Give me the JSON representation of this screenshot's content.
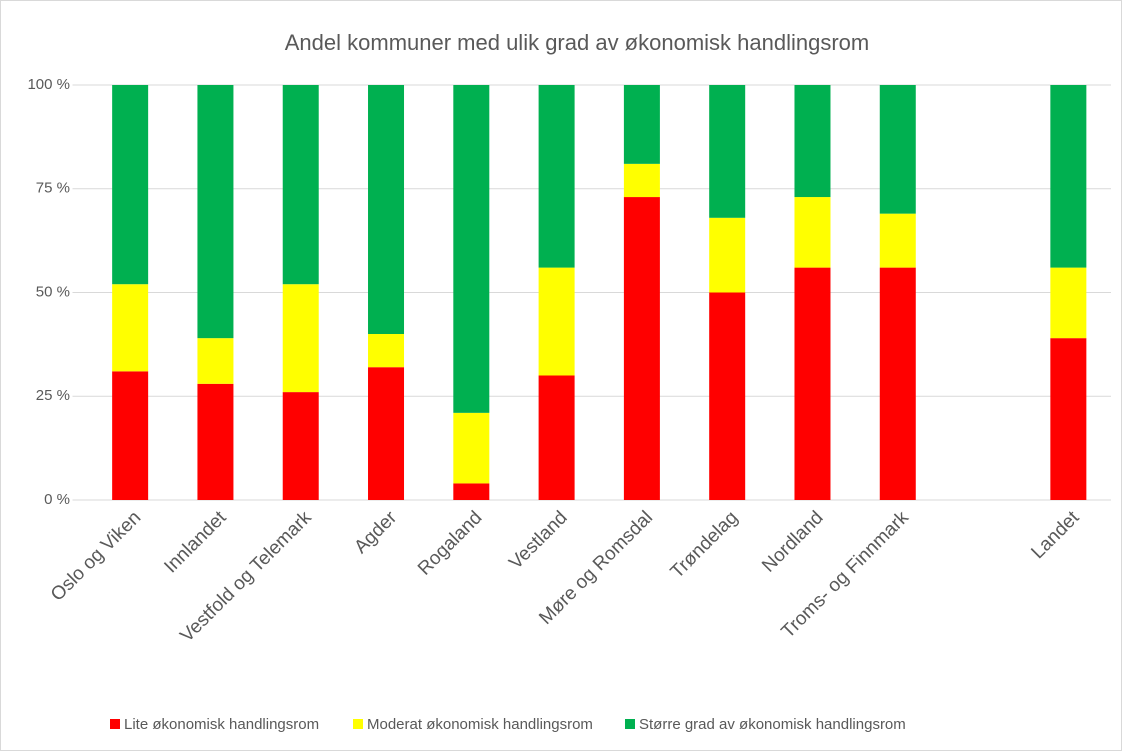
{
  "chart_data": {
    "type": "stacked_bar",
    "title": "Andel kommuner med ulik grad av økonomisk handlingsrom",
    "categories": [
      "Oslo og Viken",
      "Innlandet",
      "Vestfold og Telemark",
      "Agder",
      "Rogaland",
      "Vestland",
      "Møre og Romsdal",
      "Trøndelag",
      "Nordland",
      "Troms- og Finnmark",
      null,
      "Landet"
    ],
    "series": [
      {
        "name": "Lite økonomisk handlingsrom",
        "color": "#ff0000",
        "values": [
          31,
          28,
          26,
          32,
          4,
          30,
          73,
          50,
          56,
          56,
          null,
          39
        ]
      },
      {
        "name": "Moderat økonomisk handlingsrom",
        "color": "#ffff00",
        "values": [
          21,
          11,
          26,
          8,
          17,
          26,
          8,
          18,
          17,
          13,
          null,
          17
        ]
      },
      {
        "name": "Større grad av økonomisk handlingsrom",
        "color": "#00b050",
        "values": [
          48,
          61,
          48,
          60,
          79,
          44,
          19,
          32,
          27,
          31,
          null,
          44
        ]
      }
    ],
    "ylim": [
      0,
      100
    ],
    "yticks": [
      {
        "value": 0,
        "label": "0 %"
      },
      {
        "value": 25,
        "label": "25 %"
      },
      {
        "value": 50,
        "label": "50 %"
      },
      {
        "value": 75,
        "label": "75 %"
      },
      {
        "value": 100,
        "label": "100 %"
      }
    ],
    "grid": true,
    "legend": "bottom"
  }
}
